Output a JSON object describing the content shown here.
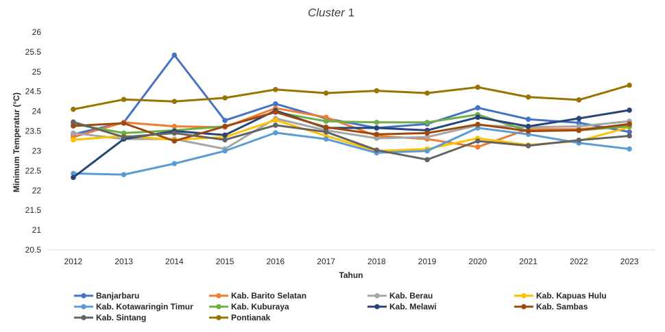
{
  "chart_data": {
    "type": "line",
    "title": "Cluster",
    "title_number": "1",
    "xlabel": "Tahun",
    "ylabel": "Minimum Temperatur (°C)",
    "categories": [
      "2012",
      "2013",
      "2014",
      "2015",
      "2016",
      "2017",
      "2018",
      "2019",
      "2020",
      "2021",
      "2022",
      "2023"
    ],
    "ylim": [
      20.5,
      26
    ],
    "yticks": [
      "20.5",
      "21",
      "21.5",
      "22",
      "22.5",
      "23",
      "23.5",
      "24",
      "24.5",
      "25",
      "25.5",
      "26"
    ],
    "grid": false,
    "legend_position": "bottom",
    "series": [
      {
        "name": "Banjarbaru",
        "color": "#4472C4",
        "values": [
          23.42,
          23.72,
          25.42,
          23.77,
          24.19,
          23.82,
          23.58,
          23.68,
          24.09,
          23.8,
          23.71,
          23.48
        ]
      },
      {
        "name": "Kab. Barito Selatan",
        "color": "#ED7D31",
        "values": [
          23.35,
          23.72,
          23.62,
          23.6,
          24.08,
          23.85,
          23.38,
          23.3,
          23.1,
          23.55,
          23.55,
          23.65
        ]
      },
      {
        "name": "Kab. Berau",
        "color": "#A5A5A5",
        "values": [
          23.45,
          23.3,
          23.3,
          23.05,
          23.82,
          23.52,
          23.32,
          23.35,
          23.65,
          23.6,
          23.62,
          23.75
        ]
      },
      {
        "name": "Kab. Kapuas Hulu",
        "color": "#FFC000",
        "values": [
          23.28,
          23.38,
          23.28,
          23.35,
          23.78,
          23.38,
          23.0,
          23.05,
          23.32,
          23.15,
          23.25,
          23.6
        ]
      },
      {
        "name": "Kab. Kotawaringin Timur",
        "color": "#5B9BD5",
        "values": [
          22.43,
          22.4,
          22.68,
          23.0,
          23.46,
          23.3,
          22.95,
          23.0,
          23.58,
          23.42,
          23.2,
          23.05
        ]
      },
      {
        "name": "Kab. Kuburaya",
        "color": "#70AD47",
        "values": [
          23.68,
          23.45,
          23.52,
          23.62,
          23.98,
          23.75,
          23.72,
          23.72,
          23.92,
          23.5,
          23.52,
          23.62
        ]
      },
      {
        "name": "Kab. Melawi",
        "color": "#264478",
        "values": [
          22.33,
          23.3,
          23.5,
          23.4,
          24.02,
          23.58,
          23.58,
          23.52,
          23.85,
          23.62,
          23.82,
          24.03
        ]
      },
      {
        "name": "Kab. Sambas",
        "color": "#9E480E",
        "values": [
          23.63,
          23.7,
          23.25,
          23.62,
          23.98,
          23.6,
          23.42,
          23.45,
          23.67,
          23.5,
          23.52,
          23.68
        ]
      },
      {
        "name": "Kab. Sintang",
        "color": "#636363",
        "values": [
          23.73,
          23.35,
          23.45,
          23.28,
          23.65,
          23.48,
          23.02,
          22.78,
          23.25,
          23.13,
          23.27,
          23.38
        ]
      },
      {
        "name": "Pontianak",
        "color": "#997300",
        "values": [
          24.05,
          24.3,
          24.25,
          24.34,
          24.55,
          24.46,
          24.52,
          24.46,
          24.61,
          24.36,
          24.29,
          24.66
        ]
      }
    ]
  }
}
